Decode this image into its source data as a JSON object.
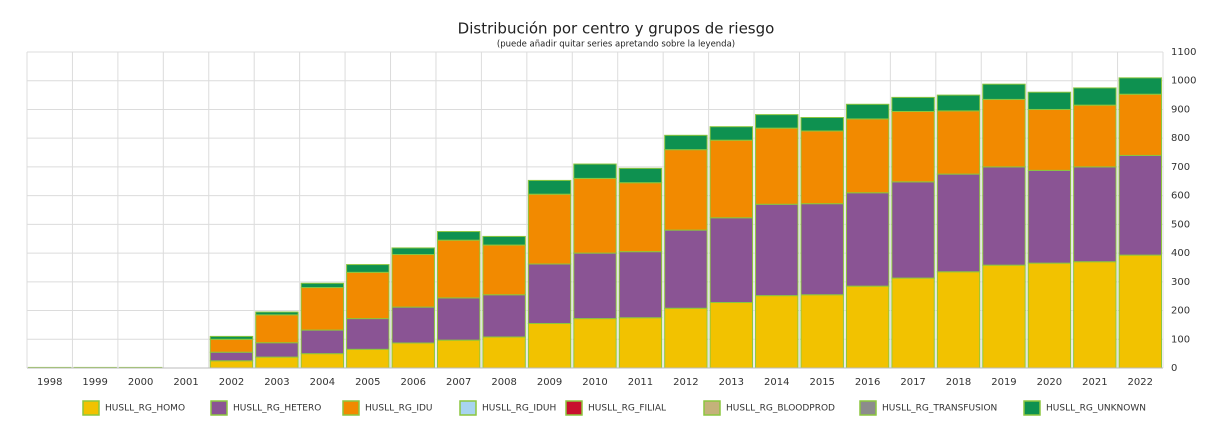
{
  "chart_data": {
    "type": "stacked_bar",
    "title": "Distribución por centro y grupos de riesgo",
    "subtitle": "(puede añadir quitar series apretando sobre la leyenda)",
    "categories": [
      "1998",
      "1999",
      "2000",
      "2001",
      "2002",
      "2003",
      "2004",
      "2005",
      "2006",
      "2007",
      "2008",
      "2009",
      "2010",
      "2011",
      "2012",
      "2013",
      "2014",
      "2015",
      "2016",
      "2017",
      "2018",
      "2019",
      "2020",
      "2021",
      "2022"
    ],
    "series": [
      {
        "name": "HUSLL_RG_HOMO",
        "color": "#f2c200",
        "values": [
          2,
          2,
          2,
          0,
          25,
          38,
          50,
          65,
          87,
          97,
          108,
          155,
          172,
          175,
          208,
          228,
          252,
          255,
          285,
          313,
          335,
          358,
          365,
          370,
          393
        ]
      },
      {
        "name": "HUSLL_RG_HETERO",
        "color": "#8a5494",
        "values": [
          0,
          0,
          0,
          0,
          30,
          50,
          82,
          107,
          125,
          147,
          147,
          207,
          228,
          230,
          272,
          295,
          318,
          317,
          325,
          335,
          340,
          342,
          323,
          330,
          347
        ]
      },
      {
        "name": "HUSLL_RG_IDU",
        "color": "#f28a00",
        "values": [
          0,
          0,
          0,
          0,
          45,
          97,
          148,
          161,
          183,
          201,
          173,
          243,
          260,
          240,
          280,
          270,
          265,
          253,
          257,
          245,
          220,
          235,
          212,
          215,
          213
        ]
      },
      {
        "name": "HUSLL_RG_IDUH",
        "color": "#a8d4f0",
        "values": [
          0,
          0,
          0,
          0,
          0,
          0,
          0,
          0,
          0,
          0,
          0,
          0,
          0,
          0,
          0,
          0,
          0,
          0,
          0,
          0,
          0,
          0,
          0,
          0,
          0
        ]
      },
      {
        "name": "HUSLL_RG_FILIAL",
        "color": "#c8102e",
        "values": [
          0,
          0,
          0,
          0,
          0,
          0,
          0,
          0,
          0,
          0,
          0,
          0,
          0,
          0,
          0,
          0,
          0,
          0,
          0,
          0,
          0,
          0,
          0,
          0,
          0
        ]
      },
      {
        "name": "HUSLL_RG_BLOODPROD",
        "color": "#c4b27a",
        "values": [
          0,
          0,
          0,
          0,
          0,
          0,
          0,
          0,
          0,
          0,
          0,
          0,
          0,
          0,
          0,
          0,
          0,
          0,
          0,
          0,
          0,
          0,
          0,
          0,
          0
        ]
      },
      {
        "name": "HUSLL_RG_TRANSFUSION",
        "color": "#8c8c8c",
        "values": [
          0,
          0,
          0,
          0,
          0,
          0,
          0,
          0,
          0,
          0,
          0,
          0,
          0,
          0,
          0,
          0,
          0,
          0,
          0,
          0,
          0,
          0,
          0,
          0,
          0
        ]
      },
      {
        "name": "HUSLL_RG_UNKNOWN",
        "color": "#0e9150",
        "values": [
          0,
          0,
          0,
          0,
          10,
          10,
          15,
          27,
          23,
          30,
          30,
          48,
          50,
          50,
          50,
          47,
          47,
          47,
          51,
          49,
          55,
          53,
          60,
          60,
          57
        ]
      }
    ],
    "ylim": [
      0,
      1100
    ],
    "yticks": [
      0,
      100,
      200,
      300,
      400,
      500,
      600,
      700,
      800,
      900,
      1000,
      1100
    ],
    "grid": true
  }
}
